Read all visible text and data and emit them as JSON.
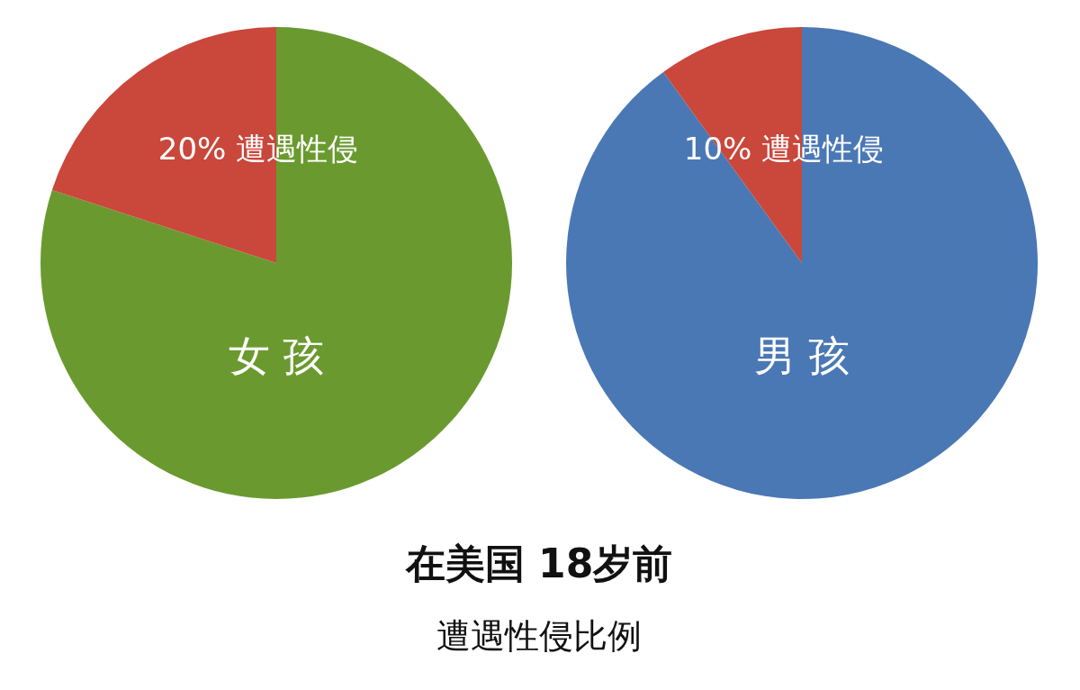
{
  "chart_data": [
    {
      "type": "pie",
      "categories": [
        "女 孩",
        "遭遇性侵"
      ],
      "values": [
        80,
        20
      ],
      "colors": [
        "#6a9a2f",
        "#c9473b"
      ],
      "value_labels": [
        null,
        "20%"
      ]
    },
    {
      "type": "pie",
      "categories": [
        "男 孩",
        "遭遇性侵"
      ],
      "values": [
        90,
        10
      ],
      "colors": [
        "#4a78b5",
        "#c9473b"
      ],
      "value_labels": [
        null,
        "10%"
      ]
    },
    {
      "type": "other",
      "title": "在美国 18岁前",
      "subtitle": "遭遇性侵比例"
    }
  ]
}
